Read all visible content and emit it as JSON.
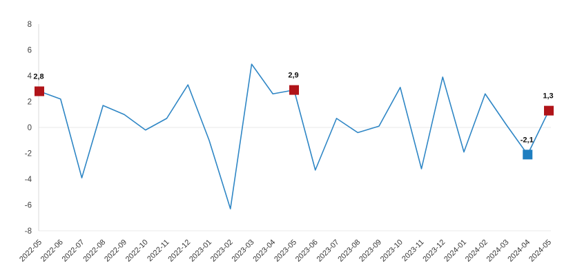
{
  "chart_data": {
    "type": "line",
    "title": "",
    "xlabel": "",
    "ylabel": "",
    "categories": [
      "2022-05",
      "2022-06",
      "2022-07",
      "2022-08",
      "2022-09",
      "2022-10",
      "2022-11",
      "2022-12",
      "2023-01",
      "2023-02",
      "2023-03",
      "2023-04",
      "2023-05",
      "2023-06",
      "2023-07",
      "2023-08",
      "2023-09",
      "2023-10",
      "2023-11",
      "2023-12",
      "2024-01",
      "2024-02",
      "2024-03",
      "2024-04",
      "2024-05"
    ],
    "values": [
      2.8,
      2.2,
      -3.9,
      1.7,
      1.0,
      -0.2,
      0.7,
      3.3,
      -1.0,
      -6.3,
      4.9,
      2.6,
      2.9,
      -3.3,
      0.7,
      -0.4,
      0.1,
      3.1,
      -3.2,
      3.9,
      -1.9,
      2.6,
      0.2,
      -2.1,
      1.3
    ],
    "ylim": [
      -8,
      8
    ],
    "yticks": [
      "8",
      "6",
      "4",
      "2",
      "0",
      "-2",
      "-4",
      "-6",
      "-8"
    ],
    "legend": "none",
    "grid": "horizontal line at 0 and at -8 only",
    "series_color": "#2e86c5",
    "annotated_points": [
      {
        "category": "2022-05",
        "label": "2,8",
        "value": 2.8,
        "marker_color": "#b01419"
      },
      {
        "category": "2023-05",
        "label": "2,9",
        "value": 2.9,
        "marker_color": "#b01419"
      },
      {
        "category": "2024-04",
        "label": "-2,1",
        "value": -2.1,
        "marker_color": "#1e7ec0"
      },
      {
        "category": "2024-05",
        "label": "1,3",
        "value": 1.3,
        "marker_color": "#b01419"
      }
    ],
    "style_colors": {
      "grid_line": "#e8e8e8",
      "axis_line": "#d9d9d9",
      "tick_label": "#3c3c3c",
      "data_label": "#0d0d0d"
    }
  }
}
